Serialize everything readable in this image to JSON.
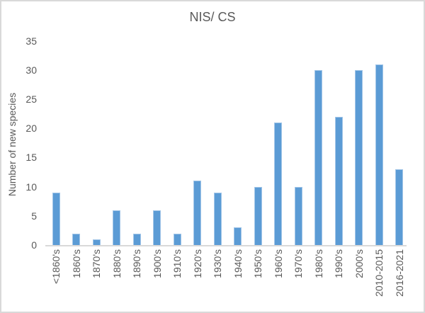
{
  "chart_data": {
    "type": "bar",
    "title": "NIS/ CS",
    "xlabel": "",
    "ylabel": "Number of new species",
    "categories": [
      "<1860's",
      "1860's",
      "1870's",
      "1880's",
      "1890's",
      "1900's",
      "1910's",
      "1920's",
      "1930's",
      "1940's",
      "1950's",
      "1960's",
      "1970's",
      "1980's",
      "1990's",
      "2000's",
      "2010-2015",
      "2016-2021"
    ],
    "values": [
      9,
      2,
      1,
      6,
      2,
      6,
      2,
      11,
      9,
      3,
      10,
      21,
      10,
      30,
      22,
      30,
      31,
      13
    ],
    "ylim": [
      0,
      35
    ],
    "yticks": [
      0,
      5,
      10,
      15,
      20,
      25,
      30,
      35
    ],
    "grid": false,
    "legend": null,
    "x_tick_rotation_degrees": 90,
    "colors": {
      "bar": "#5b9bd5",
      "bar_border": "#a3c6e8",
      "text": "#595959",
      "axis_line": "#d9d9d9",
      "frame_border": "#d9d9d9",
      "background": "#ffffff"
    }
  }
}
